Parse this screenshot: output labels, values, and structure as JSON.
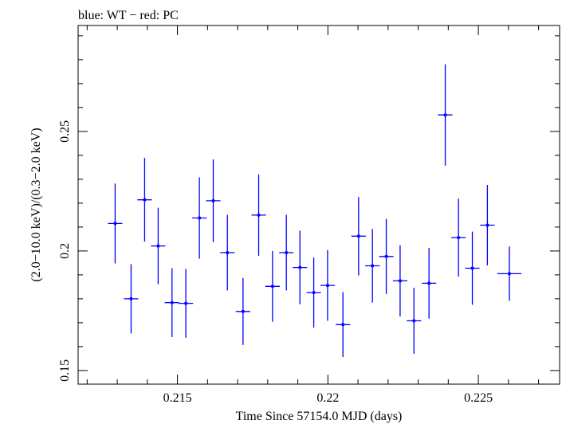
{
  "chart_data": {
    "type": "scatter",
    "title": "blue: WT − red: PC",
    "xlabel": "Time Since 57154.0 MJD (days)",
    "ylabel": "(2.0−10.0 keV)/(0.3−2.0 keV)",
    "xlim": [
      0.2117,
      0.2277
    ],
    "ylim": [
      0.1443,
      0.2943
    ],
    "x_ticks": [
      {
        "value": 0.215,
        "label": "0.215"
      },
      {
        "value": 0.22,
        "label": "0.22"
      },
      {
        "value": 0.225,
        "label": "0.225"
      }
    ],
    "y_ticks": [
      {
        "value": 0.15,
        "label": "0.15"
      },
      {
        "value": 0.2,
        "label": "0.2"
      },
      {
        "value": 0.25,
        "label": "0.25"
      }
    ],
    "grid": false,
    "series": [
      {
        "name": "WT",
        "color": "#0000ff",
        "points": [
          {
            "x": 0.21293,
            "xerr": 0.00024,
            "y": 0.2115,
            "yerr": 0.0167
          },
          {
            "x": 0.21346,
            "xerr": 0.00024,
            "y": 0.18,
            "yerr": 0.0145
          },
          {
            "x": 0.21391,
            "xerr": 0.00024,
            "y": 0.2214,
            "yerr": 0.0175
          },
          {
            "x": 0.21436,
            "xerr": 0.00024,
            "y": 0.2021,
            "yerr": 0.016
          },
          {
            "x": 0.21482,
            "xerr": 0.00024,
            "y": 0.1784,
            "yerr": 0.0144
          },
          {
            "x": 0.21528,
            "xerr": 0.00024,
            "y": 0.1781,
            "yerr": 0.0144
          },
          {
            "x": 0.21573,
            "xerr": 0.00024,
            "y": 0.2138,
            "yerr": 0.017
          },
          {
            "x": 0.21619,
            "xerr": 0.00024,
            "y": 0.221,
            "yerr": 0.0173
          },
          {
            "x": 0.21666,
            "xerr": 0.00024,
            "y": 0.1993,
            "yerr": 0.0158
          },
          {
            "x": 0.21718,
            "xerr": 0.00024,
            "y": 0.1747,
            "yerr": 0.014
          },
          {
            "x": 0.2177,
            "xerr": 0.00024,
            "y": 0.215,
            "yerr": 0.017
          },
          {
            "x": 0.21816,
            "xerr": 0.00024,
            "y": 0.1852,
            "yerr": 0.0148
          },
          {
            "x": 0.21862,
            "xerr": 0.00024,
            "y": 0.1993,
            "yerr": 0.0158
          },
          {
            "x": 0.21907,
            "xerr": 0.00024,
            "y": 0.1931,
            "yerr": 0.0154
          },
          {
            "x": 0.21953,
            "xerr": 0.00024,
            "y": 0.1826,
            "yerr": 0.0146
          },
          {
            "x": 0.21999,
            "xerr": 0.00024,
            "y": 0.1856,
            "yerr": 0.0148
          },
          {
            "x": 0.2205,
            "xerr": 0.00024,
            "y": 0.1692,
            "yerr": 0.0136
          },
          {
            "x": 0.22102,
            "xerr": 0.00024,
            "y": 0.2062,
            "yerr": 0.0164
          },
          {
            "x": 0.22148,
            "xerr": 0.00024,
            "y": 0.1938,
            "yerr": 0.0154
          },
          {
            "x": 0.22194,
            "xerr": 0.00024,
            "y": 0.1977,
            "yerr": 0.0157
          },
          {
            "x": 0.2224,
            "xerr": 0.00024,
            "y": 0.1875,
            "yerr": 0.0149
          },
          {
            "x": 0.22286,
            "xerr": 0.00024,
            "y": 0.1708,
            "yerr": 0.0138
          },
          {
            "x": 0.22336,
            "xerr": 0.00024,
            "y": 0.1865,
            "yerr": 0.0148
          },
          {
            "x": 0.2239,
            "xerr": 0.00024,
            "y": 0.2569,
            "yerr": 0.0212
          },
          {
            "x": 0.22434,
            "xerr": 0.00024,
            "y": 0.2056,
            "yerr": 0.0163
          },
          {
            "x": 0.2248,
            "xerr": 0.00024,
            "y": 0.1928,
            "yerr": 0.0153
          },
          {
            "x": 0.2253,
            "xerr": 0.00024,
            "y": 0.2108,
            "yerr": 0.0168
          },
          {
            "x": 0.22603,
            "xerr": 0.0004,
            "y": 0.1905,
            "yerr": 0.0114
          }
        ]
      }
    ]
  }
}
